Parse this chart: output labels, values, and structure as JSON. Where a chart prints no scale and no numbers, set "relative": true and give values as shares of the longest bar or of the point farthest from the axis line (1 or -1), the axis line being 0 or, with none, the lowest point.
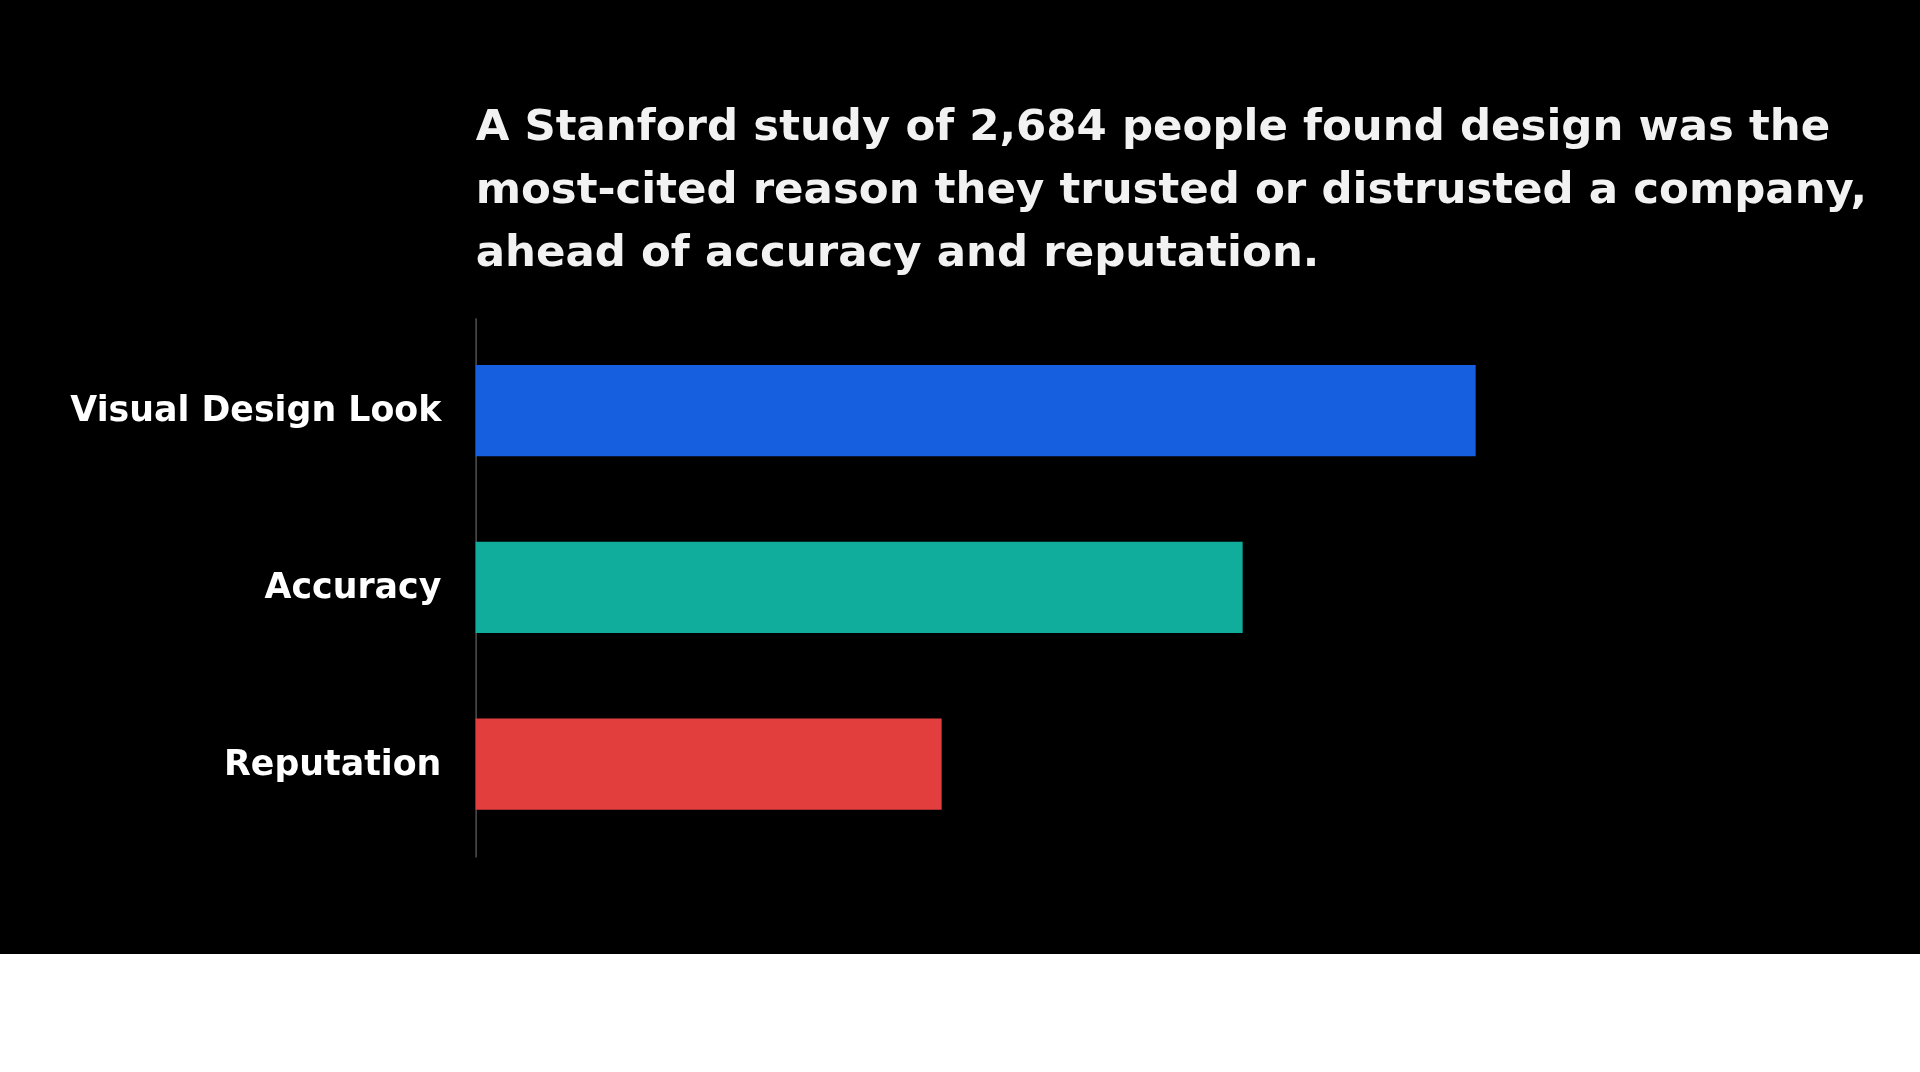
{
  "chart_data": {
    "type": "bar",
    "orientation": "horizontal",
    "relative": true,
    "title": "A Stanford study of 2,684 people found design was the most-cited reason they trusted or distrusted a company, ahead of accuracy and reputation.",
    "categories": [
      "Visual Design Look",
      "Accuracy",
      "Reputation"
    ],
    "values": [
      1,
      0.767,
      0.466
    ],
    "colors": [
      "#1660e0",
      "#10ad9d",
      "#e23e3e"
    ],
    "grid": false
  }
}
